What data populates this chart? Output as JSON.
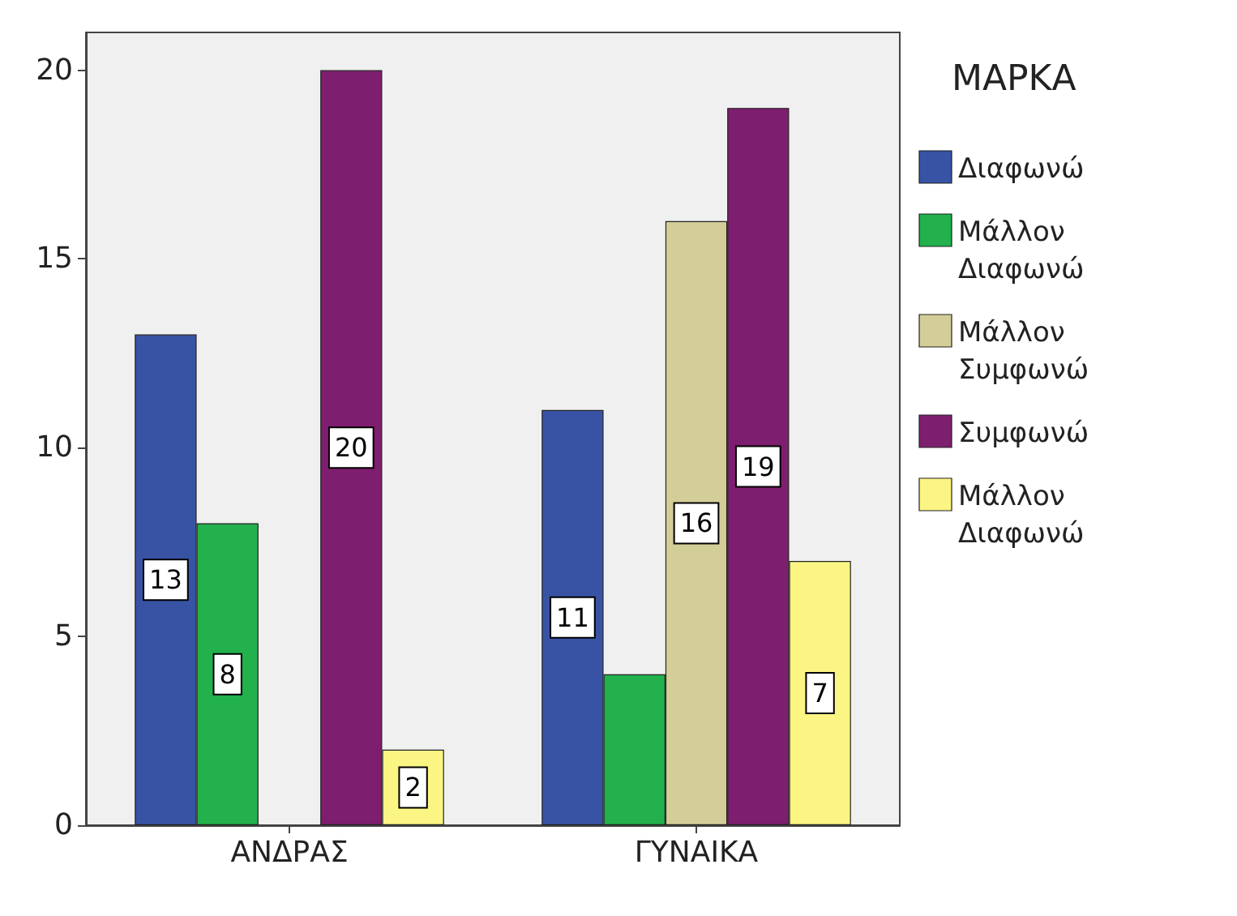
{
  "chart_data": {
    "type": "bar",
    "legend_title": "ΜΑΡΚΑ",
    "categories": [
      "ΑΝΔΡΑΣ",
      "ΓΥΝΑΙΚΑ"
    ],
    "series": [
      {
        "name": "Διαφωνώ",
        "color": "#3953a4",
        "values": [
          13,
          11
        ],
        "value_labels": [
          "13",
          "11"
        ]
      },
      {
        "name": "Μάλλον Διαφωνώ",
        "color": "#22b14c",
        "values": [
          8,
          4
        ],
        "value_labels": [
          "8",
          null
        ]
      },
      {
        "name": "Μάλλον Συμφωνώ",
        "color": "#d3ce97",
        "values": [
          null,
          16
        ],
        "value_labels": [
          null,
          "16"
        ]
      },
      {
        "name": "Συμφωνώ",
        "color": "#7e1e6e",
        "values": [
          20,
          19
        ],
        "value_labels": [
          "20",
          "19"
        ]
      },
      {
        "name": "Μάλλον Διαφωνώ",
        "color": "#fbf584",
        "values": [
          2,
          7
        ],
        "value_labels": [
          "2",
          "7"
        ]
      }
    ],
    "ylim": [
      0,
      21
    ],
    "yticks": [
      0,
      5,
      10,
      15,
      20
    ],
    "grid": false,
    "legend": "right"
  }
}
